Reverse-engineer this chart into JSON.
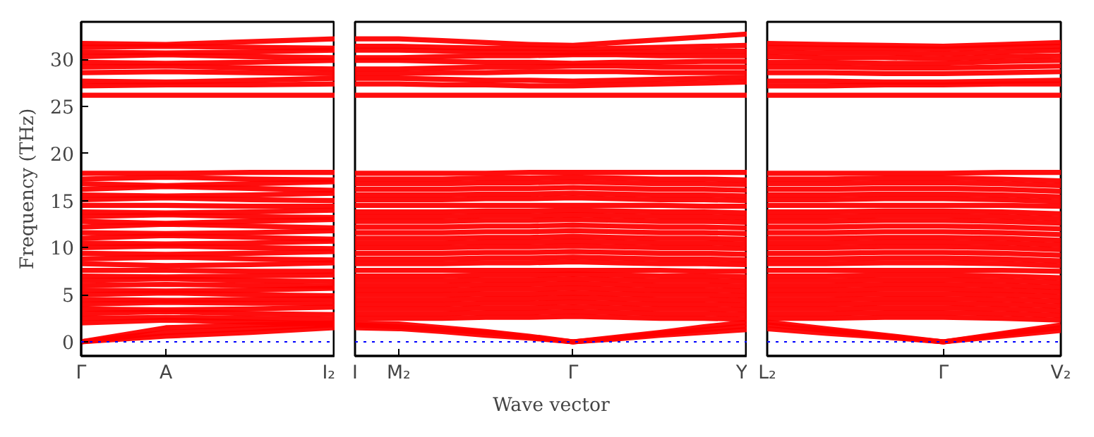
{
  "chart_data": [
    {
      "type": "line",
      "ylabel": "Frequency (THz)",
      "categories": [
        "Γ",
        "A",
        null,
        "I₂"
      ],
      "ylim": [
        -1.5,
        34
      ],
      "yticks": [
        0,
        5,
        10,
        15,
        20,
        25,
        30
      ],
      "grid": false,
      "ref_lines": [
        {
          "axis": "y",
          "value": 0,
          "color": "#0000ff",
          "line_style": "dotted"
        }
      ],
      "series": [
        {
          "color": "#ff0000",
          "values": [
            0,
            1.0,
            1.4,
            1.8
          ]
        },
        {
          "color": "#ff0000",
          "values": [
            0,
            0.6,
            1.0,
            1.5
          ]
        },
        {
          "color": "#ff0000",
          "values": [
            0,
            1.5,
            1.8,
            2.0
          ]
        },
        {
          "color": "#ff0000",
          "values": [
            2.0,
            2.3,
            2.1,
            1.9
          ]
        },
        {
          "color": "#ff0000",
          "values": [
            2.5,
            2.6,
            2.5,
            2.4
          ]
        },
        {
          "color": "#ff0000",
          "values": [
            3,
            3.2,
            3.0,
            2.9
          ]
        },
        {
          "color": "#ff0000",
          "values": [
            3.5,
            3.4,
            3.5,
            3.7
          ]
        },
        {
          "color": "#ff0000",
          "values": [
            4,
            4.2,
            4.1,
            4.1
          ]
        },
        {
          "color": "#ff0000",
          "values": [
            4.5,
            4.4,
            4.5,
            4.6
          ]
        },
        {
          "color": "#ff0000",
          "values": [
            5,
            5.2,
            5.0,
            4.9
          ]
        },
        {
          "color": "#ff0000",
          "values": [
            5.5,
            5.4,
            5.5,
            5.7
          ]
        },
        {
          "color": "#ff0000",
          "values": [
            6,
            6.1,
            6.0,
            5.9
          ]
        },
        {
          "color": "#ff0000",
          "values": [
            6.5,
            6.7,
            6.5,
            6.4
          ]
        },
        {
          "color": "#ff0000",
          "values": [
            7,
            6.9,
            7.0,
            7.1
          ]
        },
        {
          "color": "#ff0000",
          "values": [
            7.6,
            7.6,
            7.5,
            7.5
          ]
        },
        {
          "color": "#ff0000",
          "values": [
            8.3,
            8.1,
            8.2,
            8.4
          ]
        },
        {
          "color": "#ff0000",
          "values": [
            8.8,
            9.0,
            8.8,
            8.7
          ]
        },
        {
          "color": "#ff0000",
          "values": [
            9.4,
            9.3,
            9.4,
            9.6
          ]
        },
        {
          "color": "#ff0000",
          "values": [
            10,
            10.2,
            10.0,
            9.9
          ]
        },
        {
          "color": "#ff0000",
          "values": [
            10.5,
            10.4,
            10.5,
            10.7
          ]
        },
        {
          "color": "#ff0000",
          "values": [
            11,
            11.3,
            11.1,
            10.9
          ]
        },
        {
          "color": "#ff0000",
          "values": [
            11.6,
            11.5,
            11.6,
            11.8
          ]
        },
        {
          "color": "#ff0000",
          "values": [
            12.2,
            12.5,
            12.3,
            12.1
          ]
        },
        {
          "color": "#ff0000",
          "values": [
            12.8,
            12.6,
            12.8,
            13.0
          ]
        },
        {
          "color": "#ff0000",
          "values": [
            13.3,
            13.5,
            13.3,
            13.2
          ]
        },
        {
          "color": "#ff0000",
          "values": [
            13.8,
            13.7,
            13.8,
            14.0
          ]
        },
        {
          "color": "#ff0000",
          "values": [
            14.5,
            14.5,
            14.4,
            14.4
          ]
        },
        {
          "color": "#ff0000",
          "values": [
            15.1,
            15.3,
            15.1,
            15.0
          ]
        },
        {
          "color": "#ff0000",
          "values": [
            15.6,
            15.5,
            15.6,
            15.8
          ]
        },
        {
          "color": "#ff0000",
          "values": [
            16.2,
            16.5,
            16.3,
            16.1
          ]
        },
        {
          "color": "#ff0000",
          "values": [
            16.8,
            16.6,
            16.8,
            17.0
          ]
        },
        {
          "color": "#ff0000",
          "values": [
            17.3,
            17.5,
            17.3,
            17.2
          ]
        },
        {
          "color": "#ff0000",
          "values": [
            17.9,
            17.9,
            18.0,
            18.0
          ]
        },
        {
          "color": "#ff0000",
          "values": [
            26.2,
            26.2,
            26.2,
            26.2
          ]
        },
        {
          "color": "#ff0000",
          "values": [
            27.2,
            27.3,
            27.3,
            27.4
          ]
        },
        {
          "color": "#ff0000",
          "values": [
            27.7,
            27.6,
            27.8,
            28.0
          ]
        },
        {
          "color": "#ff0000",
          "values": [
            28.6,
            28.7,
            28.6,
            28.5
          ]
        },
        {
          "color": "#ff0000",
          "values": [
            29.2,
            29.3,
            29.1,
            29.0
          ]
        },
        {
          "color": "#ff0000",
          "values": [
            29.7,
            29.6,
            29.7,
            29.9
          ]
        },
        {
          "color": "#ff0000",
          "values": [
            30.3,
            30.5,
            30.3,
            30.2
          ]
        },
        {
          "color": "#ff0000",
          "values": [
            30.8,
            30.7,
            30.8,
            31.0
          ]
        },
        {
          "color": "#ff0000",
          "values": [
            31.3,
            31.4,
            31.3,
            31.2
          ]
        },
        {
          "color": "#ff0000",
          "values": [
            31.7,
            31.6,
            31.9,
            32.2
          ]
        }
      ]
    },
    {
      "type": "line",
      "xlabel": "Wave vector",
      "categories": [
        "I",
        "M₂",
        null,
        null,
        null,
        "Γ",
        null,
        null,
        null,
        "Y"
      ],
      "ylim": [
        -1.5,
        34
      ],
      "tick_labels": "x",
      "grid": false,
      "ref_lines": [
        {
          "axis": "y",
          "value": 0,
          "color": "#0000ff",
          "line_style": "dotted"
        }
      ],
      "series": [
        {
          "color": "#ff0000",
          "values": [
            1.8,
            1.6,
            1.3,
            1.0,
            0.5,
            0,
            0.4,
            0.9,
            1.3,
            1.7
          ]
        },
        {
          "color": "#ff0000",
          "values": [
            1.5,
            1.4,
            1.1,
            0.7,
            0.4,
            0,
            0.3,
            0.7,
            1.0,
            1.3
          ]
        },
        {
          "color": "#ff0000",
          "values": [
            2.0,
            1.9,
            1.5,
            1.1,
            0.6,
            0,
            0.5,
            1.0,
            1.6,
            2.1
          ]
        },
        {
          "color": "#ff0000",
          "values": [
            2.5,
            2.5,
            2.5,
            2.6,
            2.6,
            2.7,
            2.6,
            2.5,
            2.5,
            2.4
          ]
        },
        {
          "color": "#ff0000",
          "values": [
            3,
            3,
            3,
            3.1,
            3.1,
            3.2,
            3.1,
            3,
            3,
            2.9
          ]
        },
        {
          "color": "#ff0000",
          "values": [
            3.5,
            3.5,
            3.5,
            3.6,
            3.6,
            3.7,
            3.6,
            3.5,
            3.5,
            3.4
          ]
        },
        {
          "color": "#ff0000",
          "values": [
            4,
            4,
            4,
            4.1,
            4.1,
            4.2,
            4.1,
            4,
            4,
            3.9
          ]
        },
        {
          "color": "#ff0000",
          "values": [
            4.5,
            4.5,
            4.5,
            4.6,
            4.6,
            4.7,
            4.6,
            4.5,
            4.5,
            4.4
          ]
        },
        {
          "color": "#ff0000",
          "values": [
            5,
            5,
            5,
            5.1,
            5.1,
            5.2,
            5.1,
            5,
            5,
            4.9
          ]
        },
        {
          "color": "#ff0000",
          "values": [
            5.5,
            5.5,
            5.5,
            5.6,
            5.6,
            5.7,
            5.6,
            5.5,
            5.5,
            5.4
          ]
        },
        {
          "color": "#ff0000",
          "values": [
            6,
            6,
            6,
            6.1,
            6.1,
            6.2,
            6.1,
            6,
            6,
            5.9
          ]
        },
        {
          "color": "#ff0000",
          "values": [
            6.5,
            6.5,
            6.5,
            6.6,
            6.6,
            6.7,
            6.6,
            6.5,
            6.5,
            6.4
          ]
        },
        {
          "color": "#ff0000",
          "values": [
            7,
            7,
            7,
            7.1,
            7.1,
            7.2,
            7.1,
            7,
            7,
            6.9
          ]
        },
        {
          "color": "#ff0000",
          "values": [
            7.6,
            7.6,
            7.6,
            7.6,
            7.6,
            7.6,
            7.6,
            7.6,
            7.5,
            7.5
          ]
        },
        {
          "color": "#ff0000",
          "values": [
            8.3,
            8.3,
            8.3,
            8.4,
            8.4,
            8.5,
            8.4,
            8.3,
            8.3,
            8.2
          ]
        },
        {
          "color": "#ff0000",
          "values": [
            8.8,
            8.8,
            8.8,
            8.9,
            8.9,
            9.0,
            8.9,
            8.8,
            8.8,
            8.7
          ]
        },
        {
          "color": "#ff0000",
          "values": [
            9.4,
            9.4,
            9.4,
            9.5,
            9.5,
            9.6,
            9.5,
            9.4,
            9.4,
            9.3
          ]
        },
        {
          "color": "#ff0000",
          "values": [
            10,
            10,
            10,
            10.1,
            10.1,
            10.2,
            10.1,
            10,
            10,
            9.9
          ]
        },
        {
          "color": "#ff0000",
          "values": [
            10.5,
            10.5,
            10.5,
            10.6,
            10.6,
            10.7,
            10.6,
            10.5,
            10.5,
            10.4
          ]
        },
        {
          "color": "#ff0000",
          "values": [
            11,
            11,
            11,
            11.1,
            11.1,
            11.2,
            11.1,
            11,
            11,
            10.9
          ]
        },
        {
          "color": "#ff0000",
          "values": [
            11.6,
            11.6,
            11.6,
            11.7,
            11.7,
            11.8,
            11.7,
            11.6,
            11.6,
            11.5
          ]
        },
        {
          "color": "#ff0000",
          "values": [
            12.2,
            12.2,
            12.2,
            12.3,
            12.3,
            12.4,
            12.3,
            12.2,
            12.2,
            12.1
          ]
        },
        {
          "color": "#ff0000",
          "values": [
            12.8,
            12.8,
            12.8,
            12.9,
            12.9,
            13.0,
            12.9,
            12.8,
            12.8,
            12.7
          ]
        },
        {
          "color": "#ff0000",
          "values": [
            13.3,
            13.3,
            13.3,
            13.4,
            13.4,
            13.5,
            13.4,
            13.3,
            13.3,
            13.2
          ]
        },
        {
          "color": "#ff0000",
          "values": [
            13.8,
            13.8,
            13.8,
            13.9,
            13.9,
            14.0,
            13.9,
            13.8,
            13.8,
            13.7
          ]
        },
        {
          "color": "#ff0000",
          "values": [
            14.5,
            14.5,
            14.5,
            14.5,
            14.5,
            14.5,
            14.5,
            14.5,
            14.4,
            14.4
          ]
        },
        {
          "color": "#ff0000",
          "values": [
            15.1,
            15.1,
            15.1,
            15.2,
            15.2,
            15.3,
            15.2,
            15.1,
            15.1,
            15.0
          ]
        },
        {
          "color": "#ff0000",
          "values": [
            15.6,
            15.6,
            15.6,
            15.7,
            15.7,
            15.8,
            15.7,
            15.6,
            15.6,
            15.5
          ]
        },
        {
          "color": "#ff0000",
          "values": [
            16.2,
            16.2,
            16.2,
            16.3,
            16.3,
            16.4,
            16.3,
            16.2,
            16.2,
            16.1
          ]
        },
        {
          "color": "#ff0000",
          "values": [
            16.8,
            16.8,
            16.8,
            16.9,
            16.9,
            17.0,
            16.9,
            16.8,
            16.8,
            16.7
          ]
        },
        {
          "color": "#ff0000",
          "values": [
            17.3,
            17.3,
            17.3,
            17.4,
            17.4,
            17.5,
            17.4,
            17.3,
            17.3,
            17.2
          ]
        },
        {
          "color": "#ff0000",
          "values": [
            17.9,
            17.9,
            17.9,
            17.9,
            18.0,
            18.0,
            18.0,
            18.0,
            18.0,
            18.0
          ]
        },
        {
          "color": "#ff0000",
          "values": [
            26.2,
            26.2,
            26.2,
            26.2,
            26.2,
            26.2,
            26.2,
            26.2,
            26.2,
            26.2
          ]
        },
        {
          "color": "#ff0000",
          "values": [
            27.4,
            27.4,
            27.3,
            27.3,
            27.2,
            27.2,
            27.3,
            27.4,
            27.5,
            27.6
          ]
        },
        {
          "color": "#ff0000",
          "values": [
            28.0,
            28.0,
            27.9,
            27.8,
            27.8,
            27.7,
            27.8,
            27.9,
            28.0,
            28.1
          ]
        },
        {
          "color": "#ff0000",
          "values": [
            28.5,
            28.5,
            28.6,
            28.6,
            28.7,
            28.7,
            28.7,
            28.6,
            28.6,
            28.6
          ]
        },
        {
          "color": "#ff0000",
          "values": [
            29.0,
            29.0,
            29.1,
            29.2,
            29.2,
            29.3,
            29.3,
            29.2,
            29.2,
            29.2
          ]
        },
        {
          "color": "#ff0000",
          "values": [
            29.9,
            29.9,
            29.8,
            29.7,
            29.7,
            29.6,
            29.7,
            29.7,
            29.8,
            29.8
          ]
        },
        {
          "color": "#ff0000",
          "values": [
            30.2,
            30.2,
            30.3,
            30.4,
            30.4,
            30.5,
            30.5,
            30.4,
            30.4,
            30.4
          ]
        },
        {
          "color": "#ff0000",
          "values": [
            31.0,
            31.0,
            30.9,
            30.8,
            30.8,
            30.7,
            30.8,
            30.8,
            30.9,
            30.9
          ]
        },
        {
          "color": "#ff0000",
          "values": [
            31.4,
            31.4,
            31.3,
            31.2,
            31.2,
            31.1,
            31.2,
            31.3,
            31.4,
            31.5
          ]
        },
        {
          "color": "#ff0000",
          "values": [
            32.2,
            32.2,
            32.0,
            31.8,
            31.6,
            31.5,
            31.8,
            32.1,
            32.4,
            32.7
          ]
        }
      ]
    },
    {
      "type": "line",
      "categories": [
        "L₂",
        null,
        null,
        "Γ",
        null,
        "V₂"
      ],
      "ylim": [
        -1.5,
        34
      ],
      "tick_labels": "x",
      "grid": false,
      "ref_lines": [
        {
          "axis": "y",
          "value": 0,
          "color": "#0000ff",
          "line_style": "dotted"
        }
      ],
      "series": [
        {
          "color": "#ff0000",
          "values": [
            1.8,
            1.2,
            0.6,
            0,
            0.8,
            1.5
          ]
        },
        {
          "color": "#ff0000",
          "values": [
            1.4,
            0.9,
            0.5,
            0,
            0.6,
            1.2
          ]
        },
        {
          "color": "#ff0000",
          "values": [
            2.1,
            1.4,
            0.7,
            0,
            0.9,
            1.8
          ]
        },
        {
          "color": "#ff0000",
          "values": [
            2.5,
            2.5,
            2.6,
            2.6,
            2.5,
            2.3
          ]
        },
        {
          "color": "#ff0000",
          "values": [
            3,
            3,
            3.1,
            3.1,
            3.0,
            2.8
          ]
        },
        {
          "color": "#ff0000",
          "values": [
            3.5,
            3.5,
            3.6,
            3.6,
            3.5,
            3.3
          ]
        },
        {
          "color": "#ff0000",
          "values": [
            4,
            4,
            4.1,
            4.1,
            4.0,
            3.8
          ]
        },
        {
          "color": "#ff0000",
          "values": [
            4.5,
            4.5,
            4.6,
            4.6,
            4.5,
            4.3
          ]
        },
        {
          "color": "#ff0000",
          "values": [
            5,
            5,
            5.1,
            5.1,
            5.0,
            4.8
          ]
        },
        {
          "color": "#ff0000",
          "values": [
            5.5,
            5.5,
            5.6,
            5.6,
            5.5,
            5.3
          ]
        },
        {
          "color": "#ff0000",
          "values": [
            6,
            6,
            6.1,
            6.1,
            6.0,
            5.8
          ]
        },
        {
          "color": "#ff0000",
          "values": [
            6.5,
            6.5,
            6.6,
            6.6,
            6.5,
            6.3
          ]
        },
        {
          "color": "#ff0000",
          "values": [
            7,
            7,
            7.1,
            7.1,
            7.0,
            6.8
          ]
        },
        {
          "color": "#ff0000",
          "values": [
            7.6,
            7.6,
            7.6,
            7.6,
            7.6,
            7.5
          ]
        },
        {
          "color": "#ff0000",
          "values": [
            8.3,
            8.3,
            8.4,
            8.4,
            8.3,
            8.1
          ]
        },
        {
          "color": "#ff0000",
          "values": [
            8.8,
            8.8,
            8.9,
            8.9,
            8.8,
            8.6
          ]
        },
        {
          "color": "#ff0000",
          "values": [
            9.4,
            9.4,
            9.5,
            9.5,
            9.4,
            9.2
          ]
        },
        {
          "color": "#ff0000",
          "values": [
            10,
            10,
            10.1,
            10.1,
            10.0,
            9.8
          ]
        },
        {
          "color": "#ff0000",
          "values": [
            10.5,
            10.5,
            10.6,
            10.6,
            10.5,
            10.3
          ]
        },
        {
          "color": "#ff0000",
          "values": [
            11,
            11,
            11.1,
            11.1,
            11.0,
            10.8
          ]
        },
        {
          "color": "#ff0000",
          "values": [
            11.6,
            11.6,
            11.7,
            11.7,
            11.6,
            11.4
          ]
        },
        {
          "color": "#ff0000",
          "values": [
            12.2,
            12.2,
            12.3,
            12.3,
            12.2,
            12.0
          ]
        },
        {
          "color": "#ff0000",
          "values": [
            12.8,
            12.8,
            12.9,
            12.9,
            12.8,
            12.6
          ]
        },
        {
          "color": "#ff0000",
          "values": [
            13.3,
            13.3,
            13.4,
            13.4,
            13.3,
            13.1
          ]
        },
        {
          "color": "#ff0000",
          "values": [
            13.8,
            13.8,
            13.9,
            13.9,
            13.8,
            13.6
          ]
        },
        {
          "color": "#ff0000",
          "values": [
            14.5,
            14.5,
            14.5,
            14.5,
            14.5,
            14.4
          ]
        },
        {
          "color": "#ff0000",
          "values": [
            15.1,
            15.1,
            15.2,
            15.2,
            15.1,
            14.9
          ]
        },
        {
          "color": "#ff0000",
          "values": [
            15.6,
            15.6,
            15.7,
            15.7,
            15.6,
            15.4
          ]
        },
        {
          "color": "#ff0000",
          "values": [
            16.2,
            16.2,
            16.3,
            16.3,
            16.2,
            16.0
          ]
        },
        {
          "color": "#ff0000",
          "values": [
            16.8,
            16.8,
            16.9,
            16.9,
            16.8,
            16.6
          ]
        },
        {
          "color": "#ff0000",
          "values": [
            17.3,
            17.3,
            17.4,
            17.4,
            17.3,
            17.1
          ]
        },
        {
          "color": "#ff0000",
          "values": [
            17.9,
            17.9,
            17.9,
            17.9,
            18.0,
            18.0
          ]
        },
        {
          "color": "#ff0000",
          "values": [
            26.2,
            26.2,
            26.2,
            26.2,
            26.2,
            26.2
          ]
        },
        {
          "color": "#ff0000",
          "values": [
            27.2,
            27.2,
            27.3,
            27.3,
            27.4,
            27.4
          ]
        },
        {
          "color": "#ff0000",
          "values": [
            27.7,
            27.7,
            27.6,
            27.6,
            27.7,
            27.8
          ]
        },
        {
          "color": "#ff0000",
          "values": [
            28.6,
            28.6,
            28.5,
            28.5,
            28.6,
            28.7
          ]
        },
        {
          "color": "#ff0000",
          "values": [
            29.2,
            29.2,
            29.1,
            29.1,
            29.2,
            29.3
          ]
        },
        {
          "color": "#ff0000",
          "values": [
            29.7,
            29.7,
            29.6,
            29.6,
            29.8,
            29.9
          ]
        },
        {
          "color": "#ff0000",
          "values": [
            30.3,
            30.2,
            30.2,
            30.1,
            30.3,
            30.4
          ]
        },
        {
          "color": "#ff0000",
          "values": [
            30.8,
            30.7,
            30.7,
            30.6,
            30.8,
            31.0
          ]
        },
        {
          "color": "#ff0000",
          "values": [
            31.3,
            31.2,
            31.2,
            31.1,
            31.3,
            31.4
          ]
        },
        {
          "color": "#ff0000",
          "values": [
            31.7,
            31.6,
            31.5,
            31.4,
            31.6,
            31.8
          ]
        }
      ]
    }
  ]
}
